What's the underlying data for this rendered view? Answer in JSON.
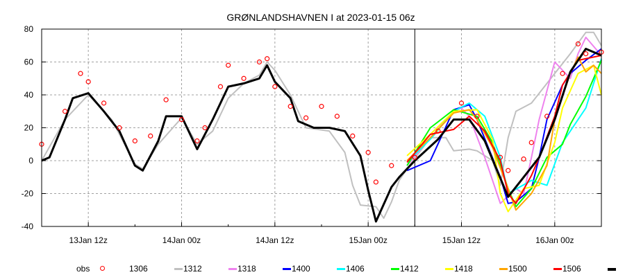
{
  "chart_data": {
    "type": "line",
    "title": "GRØNLANDSHAVNEN I at 2023-01-15 06z",
    "xlabel": "",
    "ylabel": "",
    "xlim": [
      "13Jan 06z",
      "16Jan 06z"
    ],
    "ylim": [
      -40,
      80
    ],
    "yticks": [
      -40,
      -20,
      0,
      20,
      40,
      60,
      80
    ],
    "xticks": [
      {
        "at": "13Jan 12z",
        "label": "13Jan 12z"
      },
      {
        "at": "14Jan 00z",
        "label": "14Jan 00z"
      },
      {
        "at": "14Jan 12z",
        "label": "14Jan 12z"
      },
      {
        "at": "15Jan 00z",
        "label": "15Jan 00z"
      },
      {
        "at": "15Jan 12z",
        "label": "15Jan 12z"
      },
      {
        "at": "16Jan 00z",
        "label": "16Jan 00z"
      }
    ],
    "analysis_time": "15Jan 06z",
    "grid": true,
    "legend_position": "bottom",
    "obs": {
      "name": "obs",
      "color": "#ff0000",
      "marker": "open-circle",
      "points": [
        [
          "13Jan 06z",
          10
        ],
        [
          "13Jan 09z",
          30
        ],
        [
          "13Jan 11z",
          53
        ],
        [
          "13Jan 12z",
          48
        ],
        [
          "13Jan 14z",
          35
        ],
        [
          "13Jan 16z",
          20
        ],
        [
          "13Jan 18z",
          12
        ],
        [
          "13Jan 20z",
          15
        ],
        [
          "13Jan 22z",
          37
        ],
        [
          "14Jan 00z",
          25
        ],
        [
          "14Jan 02z",
          12
        ],
        [
          "14Jan 03z",
          20
        ],
        [
          "14Jan 05z",
          45
        ],
        [
          "14Jan 06z",
          58
        ],
        [
          "14Jan 08z",
          50
        ],
        [
          "14Jan 10z",
          60
        ],
        [
          "14Jan 11z",
          62
        ],
        [
          "14Jan 12z",
          45
        ],
        [
          "14Jan 14z",
          33
        ],
        [
          "14Jan 16z",
          26
        ],
        [
          "14Jan 18z",
          33
        ],
        [
          "14Jan 20z",
          27
        ],
        [
          "14Jan 22z",
          15
        ],
        [
          "15Jan 00z",
          5
        ],
        [
          "15Jan 01z",
          -13
        ],
        [
          "15Jan 03z",
          -3
        ],
        [
          "15Jan 06z",
          2
        ],
        [
          "15Jan 09z",
          18
        ],
        [
          "15Jan 12z",
          35
        ],
        [
          "15Jan 14z",
          27
        ],
        [
          "15Jan 17z",
          2
        ],
        [
          "15Jan 18z",
          -6
        ],
        [
          "15Jan 20z",
          1
        ],
        [
          "15Jan 21z",
          11
        ],
        [
          "15Jan 23z",
          27
        ],
        [
          "16Jan 01z",
          53
        ],
        [
          "16Jan 03z",
          71
        ],
        [
          "16Jan 04z",
          65
        ],
        [
          "16Jan 06z",
          66
        ]
      ]
    },
    "series": [
      {
        "name": "1306",
        "color": "#c0c0c0",
        "points": [
          [
            "13Jan 06z",
            0
          ],
          [
            "13Jan 09z",
            25
          ],
          [
            "13Jan 12z",
            40
          ],
          [
            "13Jan 15z",
            25
          ],
          [
            "13Jan 18z",
            -2
          ],
          [
            "13Jan 19z",
            -5
          ],
          [
            "13Jan 21z",
            10
          ],
          [
            "14Jan 00z",
            26
          ],
          [
            "14Jan 02z",
            10
          ],
          [
            "14Jan 04z",
            18
          ],
          [
            "14Jan 06z",
            38
          ],
          [
            "14Jan 08z",
            47
          ],
          [
            "14Jan 10z",
            52
          ],
          [
            "14Jan 11z",
            60
          ],
          [
            "14Jan 12z",
            55
          ],
          [
            "14Jan 14z",
            40
          ],
          [
            "14Jan 16z",
            20
          ],
          [
            "14Jan 19z",
            18
          ],
          [
            "14Jan 21z",
            5
          ],
          [
            "14Jan 22z",
            -15
          ],
          [
            "14Jan 23z",
            -27
          ],
          [
            "15Jan 01z",
            -28
          ],
          [
            "15Jan 02z",
            -35
          ],
          [
            "15Jan 03z",
            -25
          ],
          [
            "15Jan 04z",
            -12
          ],
          [
            "15Jan 05z",
            -5
          ],
          [
            "15Jan 08z",
            14
          ],
          [
            "15Jan 10z",
            14
          ],
          [
            "15Jan 11z",
            6
          ],
          [
            "15Jan 13z",
            7
          ],
          [
            "15Jan 14z",
            6
          ],
          [
            "15Jan 16z",
            0
          ],
          [
            "15Jan 17z",
            -15
          ],
          [
            "15Jan 18z",
            14
          ],
          [
            "15Jan 19z",
            30
          ],
          [
            "15Jan 21z",
            35
          ],
          [
            "16Jan 00z",
            53
          ],
          [
            "16Jan 02z",
            65
          ],
          [
            "16Jan 04z",
            78
          ],
          [
            "16Jan 05z",
            78
          ],
          [
            "16Jan 06z",
            70
          ]
        ]
      },
      {
        "name": "1312",
        "color": "#ee82ee",
        "points": [
          [
            "15Jan 05z",
            -3
          ],
          [
            "15Jan 08z",
            14
          ],
          [
            "15Jan 11z",
            30
          ],
          [
            "15Jan 12z",
            32
          ],
          [
            "15Jan 13z",
            27
          ],
          [
            "15Jan 15z",
            2
          ],
          [
            "15Jan 17z",
            -26
          ],
          [
            "15Jan 19z",
            -17
          ],
          [
            "15Jan 20z",
            -20
          ],
          [
            "15Jan 21z",
            2
          ],
          [
            "15Jan 22z",
            25
          ],
          [
            "16Jan 00z",
            60
          ],
          [
            "16Jan 02z",
            50
          ],
          [
            "16Jan 03z",
            65
          ],
          [
            "16Jan 04z",
            75
          ],
          [
            "16Jan 06z",
            64
          ]
        ]
      },
      {
        "name": "1318",
        "color": "#0000ff",
        "points": [
          [
            "15Jan 05z",
            -6
          ],
          [
            "15Jan 08z",
            0
          ],
          [
            "15Jan 11z",
            31
          ],
          [
            "15Jan 13z",
            34
          ],
          [
            "15Jan 14z",
            25
          ],
          [
            "15Jan 17z",
            -10
          ],
          [
            "15Jan 18z",
            -26
          ],
          [
            "15Jan 19z",
            -25
          ],
          [
            "15Jan 21z",
            -17
          ],
          [
            "15Jan 22z",
            2
          ],
          [
            "15Jan 23z",
            25
          ],
          [
            "16Jan 01z",
            46
          ],
          [
            "16Jan 02z",
            53
          ],
          [
            "16Jan 04z",
            61
          ],
          [
            "16Jan 06z",
            68
          ]
        ]
      },
      {
        "name": "1400",
        "color": "#00ffff",
        "points": [
          [
            "15Jan 05z",
            -1
          ],
          [
            "15Jan 08z",
            13
          ],
          [
            "15Jan 11z",
            30
          ],
          [
            "15Jan 13z",
            35
          ],
          [
            "15Jan 15z",
            27
          ],
          [
            "15Jan 17z",
            2
          ],
          [
            "15Jan 18z",
            -20
          ],
          [
            "15Jan 21z",
            -12
          ],
          [
            "15Jan 23z",
            -15
          ],
          [
            "16Jan 01z",
            11
          ],
          [
            "16Jan 02z",
            18
          ],
          [
            "16Jan 04z",
            32
          ],
          [
            "16Jan 06z",
            62
          ]
        ]
      },
      {
        "name": "1406",
        "color": "#00ff00",
        "points": [
          [
            "15Jan 05z",
            -3
          ],
          [
            "15Jan 08z",
            20
          ],
          [
            "15Jan 11z",
            31
          ],
          [
            "15Jan 14z",
            27
          ],
          [
            "15Jan 16z",
            11
          ],
          [
            "15Jan 18z",
            -17
          ],
          [
            "15Jan 19z",
            -28
          ],
          [
            "15Jan 21z",
            -17
          ],
          [
            "15Jan 23z",
            2
          ],
          [
            "16Jan 01z",
            10
          ],
          [
            "16Jan 02z",
            22
          ],
          [
            "16Jan 04z",
            39
          ],
          [
            "16Jan 06z",
            61
          ]
        ]
      },
      {
        "name": "1412",
        "color": "#ffff00",
        "points": [
          [
            "15Jan 05z",
            3
          ],
          [
            "15Jan 08z",
            16
          ],
          [
            "15Jan 11z",
            30
          ],
          [
            "15Jan 14z",
            31
          ],
          [
            "15Jan 16z",
            13
          ],
          [
            "15Jan 17z",
            -20
          ],
          [
            "15Jan 18z",
            -31
          ],
          [
            "15Jan 20z",
            -17
          ],
          [
            "15Jan 22z",
            -15
          ],
          [
            "16Jan 00z",
            11
          ],
          [
            "16Jan 01z",
            32
          ],
          [
            "16Jan 03z",
            53
          ],
          [
            "16Jan 05z",
            58
          ],
          [
            "16Jan 06z",
            40
          ]
        ]
      },
      {
        "name": "1418",
        "color": "#ffa500",
        "points": [
          [
            "15Jan 05z",
            0
          ],
          [
            "15Jan 08z",
            14
          ],
          [
            "15Jan 11z",
            29
          ],
          [
            "15Jan 13z",
            31
          ],
          [
            "15Jan 14z",
            25
          ],
          [
            "15Jan 16z",
            8
          ],
          [
            "15Jan 18z",
            -17
          ],
          [
            "15Jan 19z",
            -30
          ],
          [
            "15Jan 21z",
            -20
          ],
          [
            "15Jan 23z",
            -3
          ],
          [
            "16Jan 00z",
            25
          ],
          [
            "16Jan 02z",
            53
          ],
          [
            "16Jan 03z",
            63
          ],
          [
            "16Jan 04z",
            54
          ],
          [
            "16Jan 05z",
            58
          ],
          [
            "16Jan 06z",
            53
          ]
        ]
      },
      {
        "name": "1500",
        "color": "#ff0000",
        "points": [
          [
            "15Jan 05z",
            -1
          ],
          [
            "15Jan 08z",
            16
          ],
          [
            "15Jan 11z",
            19
          ],
          [
            "15Jan 13z",
            27
          ],
          [
            "15Jan 15z",
            18
          ],
          [
            "15Jan 17z",
            0
          ],
          [
            "15Jan 18z",
            -20
          ],
          [
            "15Jan 19z",
            -26
          ],
          [
            "15Jan 21z",
            -9
          ],
          [
            "15Jan 22z",
            2
          ],
          [
            "16Jan 00z",
            27
          ],
          [
            "16Jan 01z",
            46
          ],
          [
            "16Jan 03z",
            61
          ],
          [
            "16Jan 06z",
            64
          ]
        ]
      },
      {
        "name": "1506",
        "color": "#000000",
        "points": [
          [
            "13Jan 06z",
            0
          ],
          [
            "13Jan 07z",
            2
          ],
          [
            "13Jan 09z",
            25
          ],
          [
            "13Jan 10z",
            38
          ],
          [
            "13Jan 12z",
            41
          ],
          [
            "13Jan 14z",
            30
          ],
          [
            "13Jan 16z",
            18
          ],
          [
            "13Jan 18z",
            -3
          ],
          [
            "13Jan 19z",
            -6
          ],
          [
            "13Jan 21z",
            12
          ],
          [
            "13Jan 22z",
            27
          ],
          [
            "14Jan 00z",
            27
          ],
          [
            "14Jan 02z",
            7
          ],
          [
            "14Jan 04z",
            25
          ],
          [
            "14Jan 06z",
            45
          ],
          [
            "14Jan 08z",
            47
          ],
          [
            "14Jan 10z",
            50
          ],
          [
            "14Jan 11z",
            58
          ],
          [
            "14Jan 12z",
            48
          ],
          [
            "14Jan 14z",
            38
          ],
          [
            "14Jan 15z",
            24
          ],
          [
            "14Jan 17z",
            20
          ],
          [
            "14Jan 19z",
            20
          ],
          [
            "14Jan 21z",
            18
          ],
          [
            "14Jan 23z",
            3
          ],
          [
            "15Jan 00z",
            -18
          ],
          [
            "15Jan 01z",
            -37
          ],
          [
            "15Jan 03z",
            -16
          ],
          [
            "15Jan 04z",
            -10
          ],
          [
            "15Jan 06z",
            0
          ],
          [
            "15Jan 09z",
            13
          ],
          [
            "15Jan 11z",
            25
          ],
          [
            "15Jan 13z",
            25
          ],
          [
            "15Jan 15z",
            12
          ],
          [
            "15Jan 18z",
            -22
          ],
          [
            "15Jan 20z",
            -10
          ],
          [
            "15Jan 22z",
            2
          ],
          [
            "16Jan 00z",
            25
          ],
          [
            "16Jan 02z",
            54
          ],
          [
            "16Jan 04z",
            68
          ],
          [
            "16Jan 06z",
            64
          ]
        ]
      }
    ]
  }
}
